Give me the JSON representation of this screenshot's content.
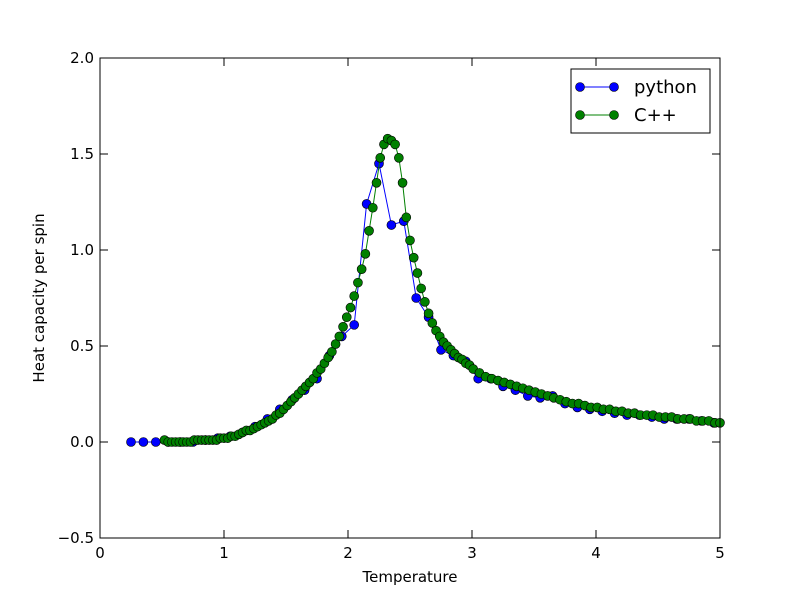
{
  "chart_data": {
    "type": "line",
    "xlabel": "Temperature",
    "ylabel": "Heat capacity per spin",
    "xlim": [
      0,
      5
    ],
    "ylim": [
      -0.5,
      2.0
    ],
    "xticks": [
      "0",
      "1",
      "2",
      "3",
      "4",
      "5"
    ],
    "yticks": [
      "−0.5",
      "0.0",
      "0.5",
      "1.0",
      "1.5",
      "2.0"
    ],
    "grid": false,
    "legend_position": "top-right",
    "series": [
      {
        "name": "python",
        "color": "#0000ff",
        "x": [
          0.25,
          0.35,
          0.45,
          0.55,
          0.65,
          0.75,
          0.85,
          0.95,
          1.05,
          1.15,
          1.25,
          1.35,
          1.45,
          1.55,
          1.65,
          1.75,
          1.85,
          1.95,
          2.05,
          2.15,
          2.25,
          2.35,
          2.45,
          2.55,
          2.65,
          2.75,
          2.85,
          2.95,
          3.05,
          3.15,
          3.25,
          3.35,
          3.45,
          3.55,
          3.65,
          3.75,
          3.85,
          3.95,
          4.05,
          4.15,
          4.25,
          4.35,
          4.45,
          4.55,
          4.65,
          4.75,
          4.85,
          4.95
        ],
        "y": [
          0.0,
          0.0,
          0.0,
          0.0,
          0.0,
          0.0,
          0.01,
          0.02,
          0.03,
          0.05,
          0.08,
          0.12,
          0.17,
          0.22,
          0.27,
          0.33,
          0.45,
          0.55,
          0.61,
          1.24,
          1.45,
          1.13,
          1.15,
          0.75,
          0.65,
          0.48,
          0.45,
          0.42,
          0.33,
          0.33,
          0.29,
          0.27,
          0.24,
          0.23,
          0.24,
          0.2,
          0.18,
          0.17,
          0.16,
          0.15,
          0.14,
          0.14,
          0.13,
          0.12,
          0.12,
          0.12,
          0.11,
          0.1
        ]
      },
      {
        "name": "C++",
        "color": "#008000",
        "x": [
          0.52,
          0.55,
          0.58,
          0.61,
          0.64,
          0.67,
          0.7,
          0.73,
          0.76,
          0.79,
          0.82,
          0.85,
          0.88,
          0.91,
          0.94,
          0.97,
          1.0,
          1.03,
          1.06,
          1.09,
          1.12,
          1.15,
          1.18,
          1.21,
          1.24,
          1.27,
          1.3,
          1.33,
          1.36,
          1.39,
          1.42,
          1.45,
          1.48,
          1.51,
          1.54,
          1.57,
          1.6,
          1.63,
          1.66,
          1.69,
          1.72,
          1.75,
          1.78,
          1.81,
          1.84,
          1.87,
          1.9,
          1.93,
          1.96,
          1.99,
          2.02,
          2.05,
          2.08,
          2.11,
          2.14,
          2.17,
          2.2,
          2.23,
          2.26,
          2.29,
          2.32,
          2.35,
          2.38,
          2.41,
          2.44,
          2.47,
          2.5,
          2.53,
          2.56,
          2.59,
          2.62,
          2.65,
          2.68,
          2.71,
          2.74,
          2.77,
          2.8,
          2.83,
          2.86,
          2.89,
          2.92,
          2.95,
          2.98,
          3.01,
          3.06,
          3.11,
          3.16,
          3.21,
          3.26,
          3.31,
          3.36,
          3.41,
          3.46,
          3.51,
          3.56,
          3.61,
          3.66,
          3.71,
          3.76,
          3.81,
          3.86,
          3.91,
          3.96,
          4.01,
          4.06,
          4.11,
          4.16,
          4.21,
          4.26,
          4.31,
          4.36,
          4.41,
          4.46,
          4.51,
          4.56,
          4.61,
          4.66,
          4.71,
          4.76,
          4.81,
          4.86,
          4.91,
          4.96,
          5.0
        ],
        "y": [
          0.01,
          0.0,
          0.0,
          0.0,
          0.0,
          0.0,
          0.0,
          0.0,
          0.01,
          0.01,
          0.01,
          0.01,
          0.01,
          0.01,
          0.01,
          0.02,
          0.02,
          0.02,
          0.03,
          0.03,
          0.04,
          0.05,
          0.06,
          0.06,
          0.07,
          0.08,
          0.09,
          0.1,
          0.11,
          0.12,
          0.14,
          0.15,
          0.17,
          0.19,
          0.21,
          0.23,
          0.25,
          0.27,
          0.29,
          0.31,
          0.33,
          0.36,
          0.38,
          0.41,
          0.44,
          0.47,
          0.51,
          0.55,
          0.6,
          0.65,
          0.7,
          0.76,
          0.83,
          0.9,
          0.98,
          1.1,
          1.22,
          1.35,
          1.48,
          1.55,
          1.58,
          1.57,
          1.55,
          1.48,
          1.35,
          1.17,
          1.05,
          0.96,
          0.88,
          0.8,
          0.73,
          0.67,
          0.62,
          0.58,
          0.55,
          0.52,
          0.5,
          0.48,
          0.46,
          0.44,
          0.43,
          0.41,
          0.4,
          0.38,
          0.36,
          0.34,
          0.33,
          0.32,
          0.31,
          0.3,
          0.29,
          0.28,
          0.27,
          0.26,
          0.25,
          0.24,
          0.23,
          0.22,
          0.21,
          0.2,
          0.2,
          0.19,
          0.18,
          0.18,
          0.17,
          0.17,
          0.16,
          0.16,
          0.15,
          0.15,
          0.14,
          0.14,
          0.14,
          0.13,
          0.13,
          0.13,
          0.12,
          0.12,
          0.12,
          0.11,
          0.11,
          0.11,
          0.1,
          0.1
        ]
      }
    ]
  }
}
